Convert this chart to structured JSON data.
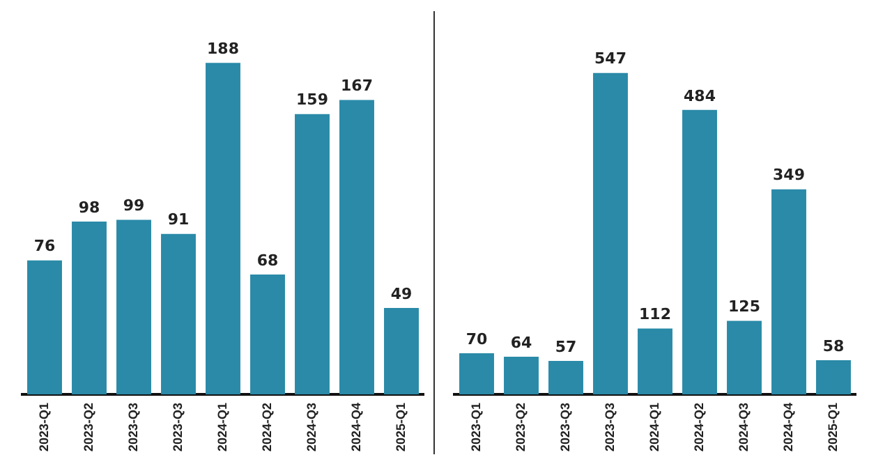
{
  "chart_data": [
    {
      "type": "bar",
      "categories": [
        "2023-Q1",
        "2023-Q2",
        "2023-Q3",
        "2023-Q3",
        "2024-Q1",
        "2024-Q2",
        "2024-Q3",
        "2024-Q4",
        "2025-Q1"
      ],
      "values": [
        76,
        98,
        99,
        91,
        188,
        68,
        159,
        167,
        49
      ],
      "color": "#2a8aa8",
      "data_labels": true,
      "grid": false,
      "legend": false
    },
    {
      "type": "bar",
      "categories": [
        "2023-Q1",
        "2023-Q2",
        "2023-Q3",
        "2023-Q3",
        "2024-Q1",
        "2024-Q2",
        "2024-Q3",
        "2024-Q4",
        "2025-Q1"
      ],
      "values": [
        70,
        64,
        57,
        547,
        112,
        484,
        125,
        349,
        58
      ],
      "color": "#2a8aa8",
      "data_labels": true,
      "grid": false,
      "legend": false
    }
  ]
}
